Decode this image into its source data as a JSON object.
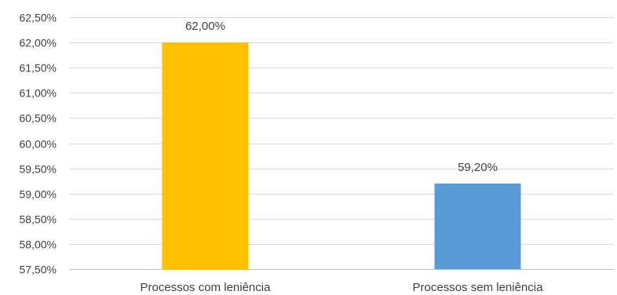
{
  "chart_data": {
    "type": "bar",
    "title": "",
    "xlabel": "",
    "ylabel": "",
    "categories": [
      "Processos com leniência",
      "Processos sem leniência"
    ],
    "values": [
      62.0,
      59.2
    ],
    "value_labels": [
      "62,00%",
      "59,20%"
    ],
    "colors": [
      "#ffc000",
      "#5b9bd5"
    ],
    "ylim": [
      57.5,
      62.5
    ],
    "yticks": [
      57.5,
      58.0,
      58.5,
      59.0,
      59.5,
      60.0,
      60.5,
      61.0,
      61.5,
      62.0,
      62.5
    ],
    "ytick_labels": [
      "57,50%",
      "58,00%",
      "58,50%",
      "59,00%",
      "59,50%",
      "60,00%",
      "60,50%",
      "61,00%",
      "61,50%",
      "62,00%",
      "62,50%"
    ],
    "grid": true,
    "legend": "none"
  }
}
